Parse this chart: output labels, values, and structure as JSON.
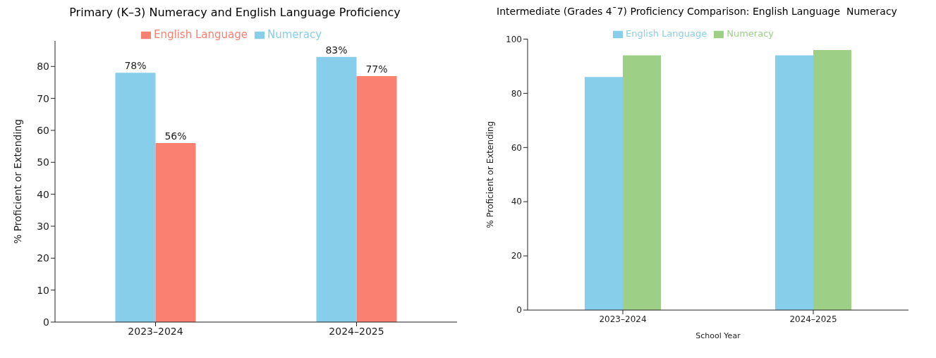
{
  "chart_data": [
    {
      "type": "bar",
      "title": "Primary (K–3) Numeracy and English Language Proficiency",
      "ylabel": "% Proficient or Extending",
      "categories": [
        "2023–2024",
        "2024–2025"
      ],
      "series": [
        {
          "name": "Numeracy",
          "color": "#87ceeb",
          "values": [
            78,
            83
          ],
          "value_labels": [
            "78%",
            "83%"
          ]
        },
        {
          "name": "English Language",
          "color": "#fa8072",
          "values": [
            56,
            77
          ],
          "value_labels": [
            "56%",
            "77%"
          ]
        }
      ],
      "ylim": [
        0,
        88
      ],
      "yticks": [
        0,
        10,
        20,
        30,
        40,
        50,
        60,
        70,
        80
      ],
      "grid": false,
      "legend": "top"
    },
    {
      "type": "bar",
      "title": "Intermediate (Grades 4¯7) Proficiency Comparison: English Language  Numeracy",
      "xlabel": "School Year",
      "ylabel": "% Proficient or Extending",
      "categories": [
        "2023–2024",
        "2024–2025"
      ],
      "series": [
        {
          "name": "English Language",
          "color": "#87ceeb",
          "values": [
            86,
            94
          ]
        },
        {
          "name": "Numeracy",
          "color": "#9dcf87",
          "values": [
            94,
            96
          ]
        }
      ],
      "ylim": [
        0,
        100
      ],
      "yticks": [
        0,
        20,
        40,
        60,
        80,
        100
      ],
      "grid": false,
      "legend": "top"
    }
  ]
}
